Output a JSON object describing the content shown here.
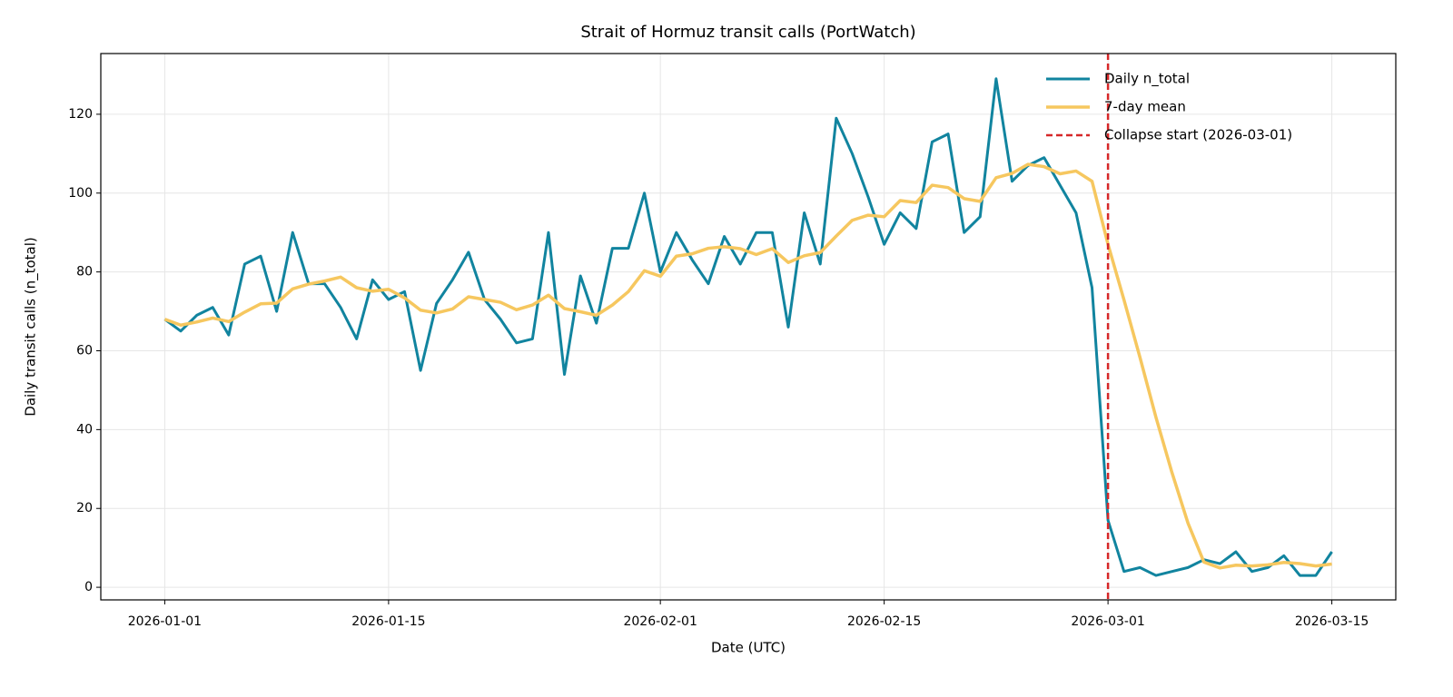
{
  "chart_data": {
    "type": "line",
    "title": "Strait of Hormuz transit calls (PortWatch)",
    "xlabel": "Date (UTC)",
    "ylabel": "Daily transit calls (n_total)",
    "x": [
      "2026-01-01",
      "2026-01-02",
      "2026-01-03",
      "2026-01-04",
      "2026-01-05",
      "2026-01-06",
      "2026-01-07",
      "2026-01-08",
      "2026-01-09",
      "2026-01-10",
      "2026-01-11",
      "2026-01-12",
      "2026-01-13",
      "2026-01-14",
      "2026-01-15",
      "2026-01-16",
      "2026-01-17",
      "2026-01-18",
      "2026-01-19",
      "2026-01-20",
      "2026-01-21",
      "2026-01-22",
      "2026-01-23",
      "2026-01-24",
      "2026-01-25",
      "2026-01-26",
      "2026-01-27",
      "2026-01-28",
      "2026-01-29",
      "2026-01-30",
      "2026-01-31",
      "2026-02-01",
      "2026-02-02",
      "2026-02-03",
      "2026-02-04",
      "2026-02-05",
      "2026-02-06",
      "2026-02-07",
      "2026-02-08",
      "2026-02-09",
      "2026-02-10",
      "2026-02-11",
      "2026-02-12",
      "2026-02-13",
      "2026-02-14",
      "2026-02-15",
      "2026-02-16",
      "2026-02-17",
      "2026-02-18",
      "2026-02-19",
      "2026-02-20",
      "2026-02-21",
      "2026-02-22",
      "2026-02-23",
      "2026-02-24",
      "2026-02-25",
      "2026-02-26",
      "2026-02-27",
      "2026-02-28",
      "2026-03-01",
      "2026-03-02",
      "2026-03-03",
      "2026-03-04",
      "2026-03-05",
      "2026-03-06",
      "2026-03-07",
      "2026-03-08",
      "2026-03-09",
      "2026-03-10",
      "2026-03-11",
      "2026-03-12",
      "2026-03-13",
      "2026-03-14",
      "2026-03-15"
    ],
    "series": [
      {
        "name": "Daily n_total",
        "color": "#11849f",
        "width": 3,
        "values": [
          68,
          65,
          69,
          71,
          64,
          82,
          84,
          70,
          90,
          77,
          77,
          71,
          63,
          78,
          73,
          75,
          55,
          72,
          78,
          85,
          73,
          68,
          62,
          63,
          90,
          54,
          79,
          67,
          86,
          86,
          100,
          80,
          90,
          83,
          77,
          89,
          82,
          90,
          90,
          66,
          95,
          82,
          119,
          110,
          99,
          87,
          95,
          91,
          113,
          115,
          90,
          94,
          129,
          103,
          107,
          109,
          102,
          95,
          76,
          17,
          4,
          5,
          3,
          4,
          5,
          7,
          6,
          9,
          4,
          5,
          8,
          3,
          3,
          9
        ]
      },
      {
        "name": "7-day mean",
        "color": "#f6c75f",
        "width": 3.5,
        "values": [
          68,
          66.5,
          67.3,
          68.3,
          67.4,
          69.8,
          71.9,
          72.1,
          75.7,
          76.9,
          77.7,
          78.7,
          76.0,
          75.1,
          75.6,
          73.4,
          70.3,
          69.6,
          70.6,
          73.7,
          73.0,
          72.3,
          70.4,
          71.6,
          74.1,
          70.7,
          69.9,
          69.0,
          71.6,
          75.0,
          80.3,
          78.9,
          84.0,
          84.6,
          86.0,
          86.4,
          85.9,
          84.4,
          85.9,
          82.4,
          84.1,
          84.9,
          89.1,
          93.1,
          94.4,
          94.0,
          98.1,
          97.6,
          102.0,
          101.4,
          98.6,
          97.9,
          103.9,
          105.0,
          107.3,
          106.7,
          104.9,
          105.6,
          103.0,
          87.0,
          72.9,
          58.3,
          43.1,
          29.1,
          16.3,
          6.4,
          4.9,
          5.6,
          5.4,
          5.7,
          6.3,
          6.0,
          5.4,
          5.9
        ]
      }
    ],
    "vline": {
      "x": "2026-03-01",
      "label": "Collapse start (2026-03-01)",
      "color": "#d62728"
    },
    "xlim": [
      "2025-12-28",
      "2026-03-19"
    ],
    "xticks": [
      "2026-01-01",
      "2026-01-15",
      "2026-02-01",
      "2026-02-15",
      "2026-03-01",
      "2026-03-15"
    ],
    "ylim": [
      -3.2,
      135.4
    ],
    "yticks": [
      0,
      20,
      40,
      60,
      80,
      100,
      120
    ],
    "grid": true,
    "legend": "upper right"
  }
}
